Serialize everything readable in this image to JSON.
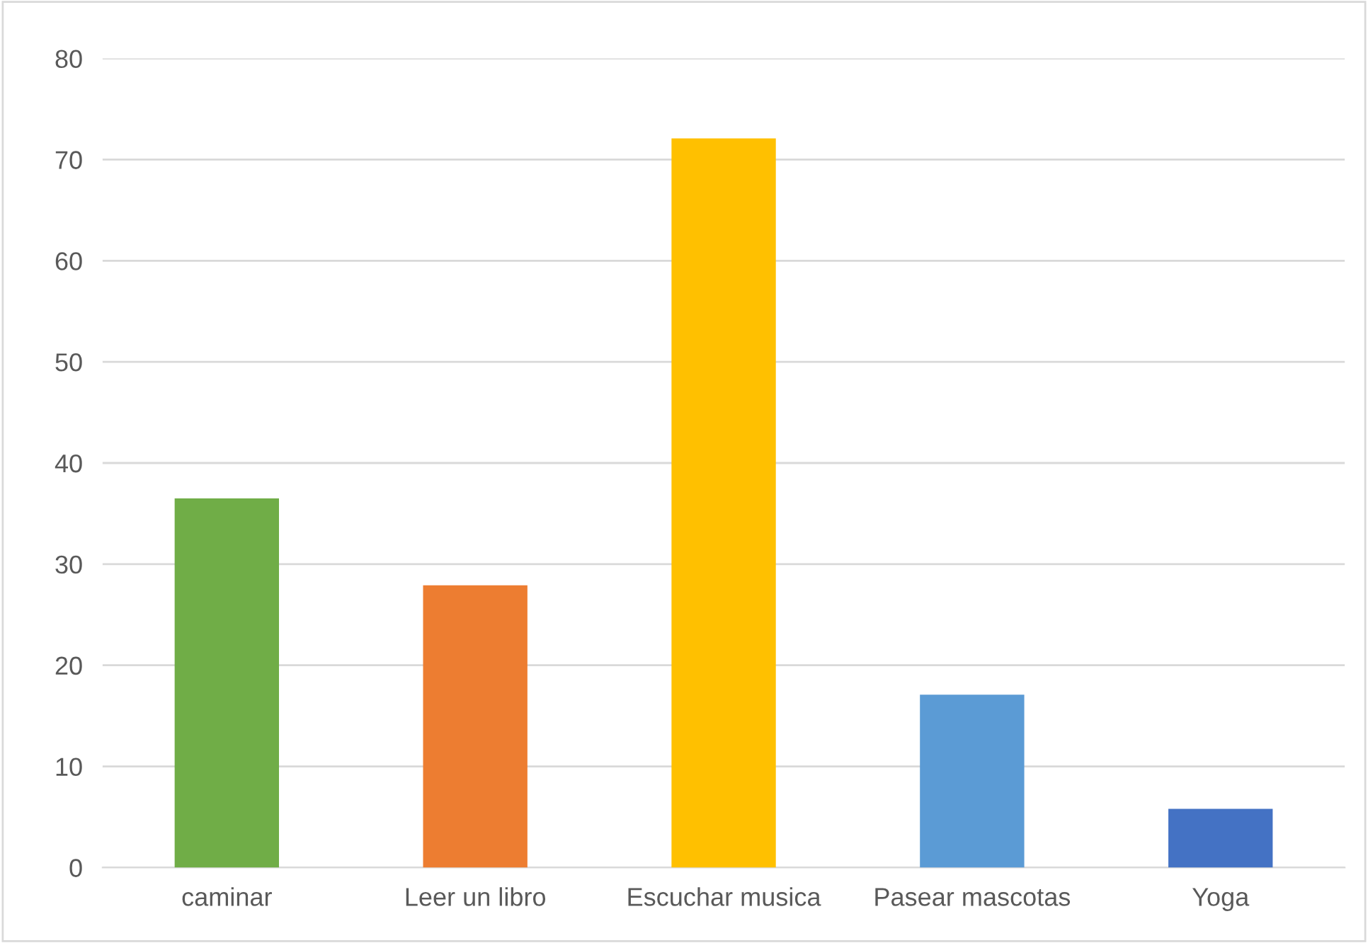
{
  "chart_data": {
    "type": "bar",
    "categories": [
      "caminar",
      "Leer un libro",
      "Escuchar musica",
      "Pasear mascotas",
      "Yoga"
    ],
    "values": [
      36.5,
      27.9,
      72.1,
      17.1,
      5.8
    ],
    "colors": [
      "#70ad47",
      "#ed7d31",
      "#ffc000",
      "#5b9bd5",
      "#4472c4"
    ],
    "ylim": [
      0,
      80
    ],
    "yticks": [
      0,
      10,
      20,
      30,
      40,
      50,
      60,
      70,
      80
    ],
    "grid": "y",
    "legend": false
  }
}
